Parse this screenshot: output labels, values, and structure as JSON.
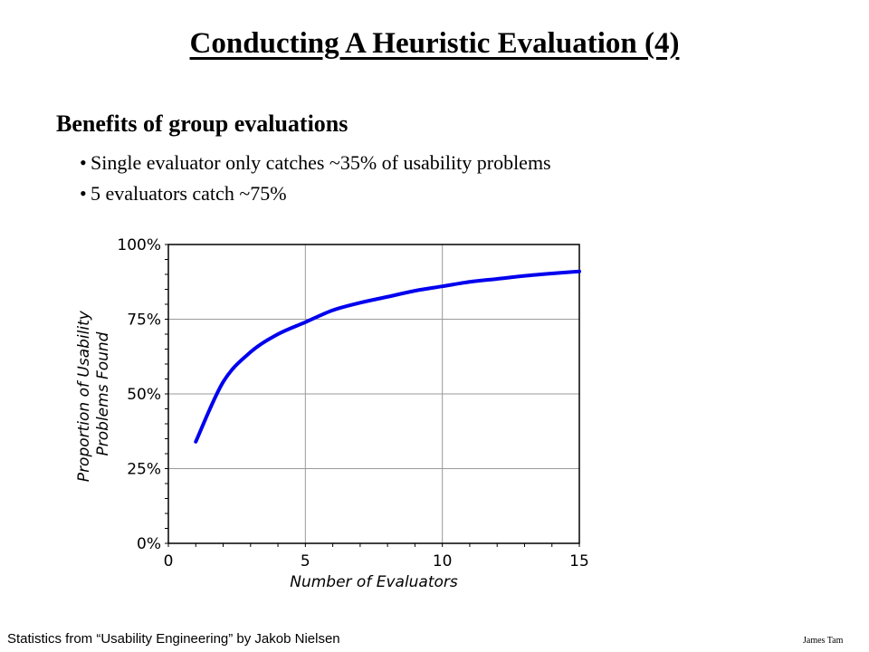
{
  "slide": {
    "title": "Conducting A Heuristic Evaluation (4)",
    "heading": "Benefits of group evaluations",
    "bullet_char": "•",
    "bullets": [
      "Single evaluator only catches  ~35% of usability problems",
      "5 evaluators catch ~75%"
    ],
    "footer_left": "Statistics from “Usability Engineering” by Jakob Nielsen",
    "footer_right": "James Tam"
  },
  "chart_data": {
    "type": "line",
    "xlabel": "Number of Evaluators",
    "ylabel_lines": [
      "Proportion of Usability",
      "Problems Found"
    ],
    "xlim": [
      0,
      15
    ],
    "ylim": [
      0,
      100
    ],
    "x_ticks": [
      "0",
      "5",
      "10",
      "15"
    ],
    "y_ticks": [
      "0%",
      "25%",
      "50%",
      "75%",
      "100%"
    ],
    "grid": true,
    "line_color": "#0000ee",
    "series": [
      {
        "x": [
          1,
          2,
          3,
          4,
          5,
          6,
          7,
          8,
          9,
          10,
          11,
          12,
          13,
          14,
          15
        ],
        "y": [
          34,
          54,
          64,
          70,
          74,
          78,
          80.5,
          82.5,
          84.5,
          86,
          87.5,
          88.5,
          89.5,
          90.3,
          91
        ]
      }
    ]
  }
}
